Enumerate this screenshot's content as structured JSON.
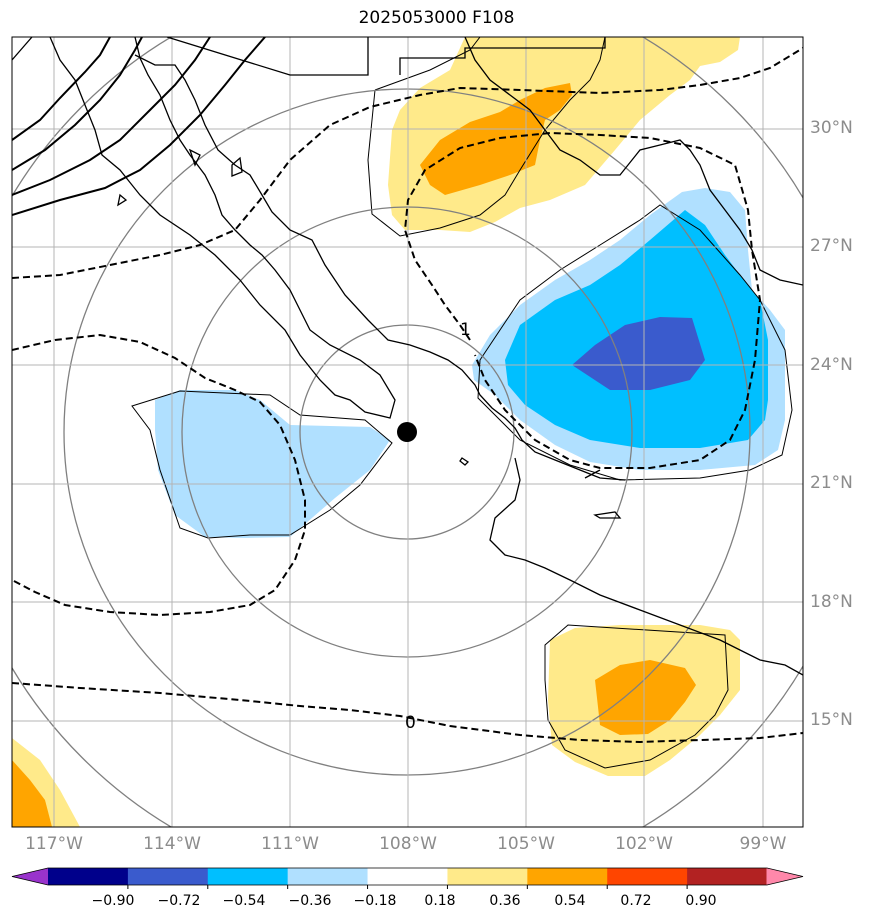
{
  "title": "2025053000 F108",
  "lat_labels": [
    "30°N",
    "27°N",
    "24°N",
    "21°N",
    "18°N",
    "15°N"
  ],
  "lon_labels": [
    "117°W",
    "114°W",
    "111°W",
    "108°W",
    "105°W",
    "102°W",
    "99°W"
  ],
  "contour_labels": [
    "1",
    "0"
  ],
  "colorbar": {
    "ticks": [
      "−0.90",
      "−0.72",
      "−0.54",
      "−0.36",
      "−0.18",
      "0.18",
      "0.36",
      "0.54",
      "0.72",
      "0.90"
    ],
    "colors": [
      "#9933cc",
      "#00008b",
      "#3a5bcd",
      "#00bfff",
      "#b0e0ff",
      "#ffffff",
      "#ffea8a",
      "#ffa500",
      "#ff4500",
      "#b22222",
      "#ff88aa"
    ]
  }
}
